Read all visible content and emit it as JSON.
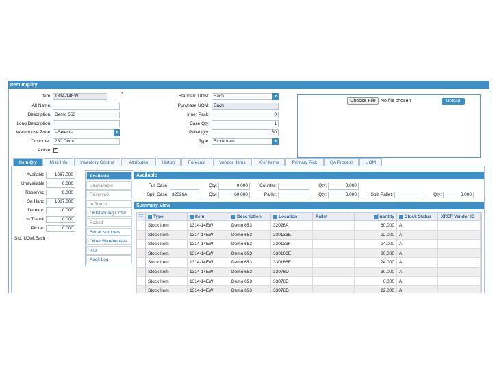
{
  "panel_title": "Item Inquiry",
  "required_mark": "*",
  "form_left": [
    {
      "label": "Item:",
      "value": "1314-14EW",
      "type": "readonly"
    },
    {
      "label": "Alt Name:"
    },
    {
      "label": "Description:",
      "value": "Demo 653"
    },
    {
      "label": "Long Description:"
    },
    {
      "label": "Warehouse Zone:",
      "value": "--Select--",
      "type": "select"
    },
    {
      "label": "Customer:",
      "value": "280 Demo"
    },
    {
      "label": "Active:",
      "type": "checkbox"
    }
  ],
  "form_mid": [
    {
      "label": "Standard UOM:",
      "value": "Each",
      "type": "select"
    },
    {
      "label": "Purchase UOM:",
      "value": "Each",
      "type": "readonly"
    },
    {
      "label": "Inner Pack:",
      "value": "0",
      "type": "number"
    },
    {
      "label": "Case Qty:",
      "value": "1",
      "type": "number"
    },
    {
      "label": "Pallet Qty:",
      "value": "30",
      "type": "number"
    },
    {
      "label": "Type:",
      "value": "Stock Item",
      "type": "select"
    }
  ],
  "upload": {
    "choose": "Choose File",
    "status": "No file chosen",
    "button": "Upload"
  },
  "tabs": [
    "Item Qty",
    "Misc Info",
    "Inventory Control",
    "Attributes",
    "History",
    "Forecast",
    "Vendor Items",
    "Xref Items",
    "Primary Pick",
    "QA Process",
    "UOM"
  ],
  "active_tab": 0,
  "qty": [
    {
      "label": "Available",
      "value": "1087.000"
    },
    {
      "label": "Unavailable",
      "value": "0.000"
    },
    {
      "label": "Reserved",
      "value": "0.000"
    },
    {
      "label": "On Hand",
      "value": "1087.000"
    },
    {
      "label": "Demand",
      "value": "0.000"
    },
    {
      "label": "In Transit",
      "value": "0.000"
    },
    {
      "label": "Picked",
      "value": "0.000"
    }
  ],
  "std_uom": "Std. UOM:Each",
  "nav": [
    {
      "label": "Available",
      "state": "active"
    },
    {
      "label": "Unavailable",
      "state": "disabled"
    },
    {
      "label": "Reserved",
      "state": "disabled"
    },
    {
      "label": "In Transit",
      "state": "disabled"
    },
    {
      "label": "Outstanding Order",
      "state": "link"
    },
    {
      "label": "Picked",
      "state": "disabled"
    },
    {
      "label": "Serial Numbers",
      "state": "link"
    },
    {
      "label": "Other Warehouses",
      "state": "link"
    },
    {
      "label": "Kits",
      "state": "link"
    },
    {
      "label": "Audit Log",
      "state": "link"
    }
  ],
  "available": {
    "title": "Available",
    "rows": [
      [
        {
          "label": "Full Case:"
        },
        {
          "label": "Qty:",
          "value": "0.000"
        },
        {
          "label": "Counter:"
        },
        {
          "label": "Qty:",
          "value": "0.000"
        }
      ],
      [
        {
          "label": "Split Case:",
          "value": "32026A"
        },
        {
          "label": "Qty:",
          "value": "60.000"
        },
        {
          "label": "Pallet:"
        },
        {
          "label": "Qty:",
          "value": "0.000"
        },
        {
          "label": "Split Pallet:"
        },
        {
          "label": "Qty:",
          "value": "0.000"
        }
      ]
    ]
  },
  "summary": {
    "title": "Summary View",
    "columns": [
      "Type",
      "Item",
      "Description",
      "Location",
      "Pallet",
      "Quantity",
      "Stock Status",
      "XREF Vendor ID"
    ],
    "rows": [
      [
        "Stock Item",
        "1314-14EW",
        "Demo 653",
        "32026A",
        "",
        "60.000",
        "A",
        ""
      ],
      [
        "Stock Item",
        "1314-14EW",
        "Demo 653",
        "330133E",
        "",
        "22.000",
        "A",
        ""
      ],
      [
        "Stock Item",
        "1314-14EW",
        "Demo 653",
        "330133F",
        "",
        "24.000",
        "A",
        ""
      ],
      [
        "Stock Item",
        "1314-14EW",
        "Demo 653",
        "330166E",
        "",
        "30.000",
        "A",
        ""
      ],
      [
        "Stock Item",
        "1314-14EW",
        "Demo 653",
        "330166F",
        "",
        "24.000",
        "A",
        ""
      ],
      [
        "Stock Item",
        "1314-14EW",
        "Demo 653",
        "33076D",
        "",
        "30.000",
        "A",
        ""
      ],
      [
        "Stock Item",
        "1314-14EW",
        "Demo 653",
        "33076E",
        "",
        "6.000",
        "A",
        ""
      ],
      [
        "Stock Item",
        "1314-14EW",
        "Demo 653",
        "33078D",
        "",
        "22.000",
        "A",
        ""
      ]
    ]
  }
}
